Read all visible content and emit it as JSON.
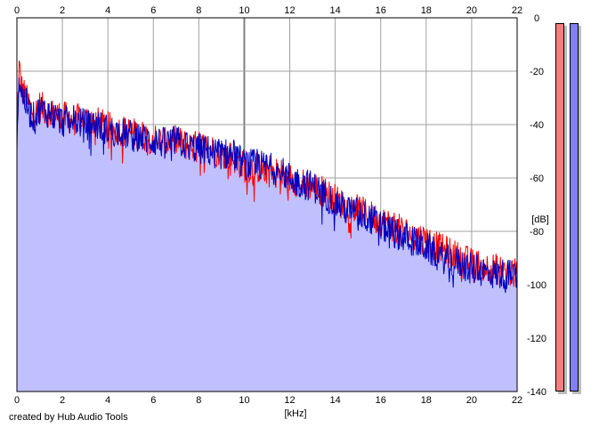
{
  "footer": {
    "credit": "created by Hub Audio Tools"
  },
  "colors": {
    "channel_left": "#ff0000",
    "channel_right": "#0000c0",
    "area_fill": "#c0c0ff",
    "meter_left": "#f08080",
    "meter_right": "#8080f0",
    "grid": "#a0a0a0"
  },
  "meters": {
    "left_level": 1.0,
    "right_level": 1.0
  },
  "chart_data": {
    "type": "line",
    "title": "",
    "xlabel": "[kHz]",
    "ylabel": "[dB]",
    "xlim": [
      0,
      22
    ],
    "ylim": [
      -140,
      0
    ],
    "x_ticks": [
      0,
      2,
      4,
      6,
      8,
      10,
      12,
      14,
      16,
      18,
      20,
      22
    ],
    "y_ticks": [
      0,
      -20,
      -40,
      -60,
      -80,
      -100,
      -120,
      -140
    ],
    "grid": true,
    "series": [
      {
        "channel": "left",
        "x": [
          0,
          0.1,
          0.2,
          0.4,
          0.6,
          0.8,
          1,
          1.5,
          2,
          2.5,
          3,
          3.5,
          4,
          4.5,
          5,
          5.5,
          6,
          6.5,
          7,
          7.5,
          8,
          8.5,
          9,
          9.5,
          10,
          10.5,
          11,
          11.5,
          12,
          12.5,
          13,
          13.5,
          14,
          14.5,
          15,
          15.5,
          16,
          16.5,
          17,
          17.5,
          18,
          18.5,
          19,
          19.5,
          20,
          20.5,
          21,
          21.5,
          22
        ],
        "y": [
          -42,
          -18,
          -26,
          -30,
          -34,
          -36,
          -33,
          -36,
          -37,
          -38,
          -38,
          -39,
          -41,
          -42,
          -43,
          -44,
          -45,
          -47,
          -46,
          -48,
          -48,
          -49,
          -51,
          -52,
          -56,
          -56,
          -57,
          -58,
          -60,
          -62,
          -63,
          -65,
          -68,
          -71,
          -72,
          -74,
          -76,
          -78,
          -80,
          -82,
          -83,
          -86,
          -88,
          -90,
          -92,
          -93,
          -94,
          -95,
          -96
        ]
      },
      {
        "channel": "right",
        "x": [
          0,
          0.1,
          0.2,
          0.4,
          0.6,
          0.8,
          1,
          1.5,
          2,
          2.5,
          3,
          3.5,
          4,
          4.5,
          5,
          5.5,
          6,
          6.5,
          7,
          7.5,
          8,
          8.5,
          9,
          9.5,
          10,
          10.5,
          11,
          11.5,
          12,
          12.5,
          13,
          13.5,
          14,
          14.5,
          15,
          15.5,
          16,
          16.5,
          17,
          17.5,
          18,
          18.5,
          19,
          19.5,
          20,
          20.5,
          21,
          21.5,
          22
        ],
        "y": [
          -44,
          -22,
          -28,
          -32,
          -36,
          -38,
          -34,
          -36,
          -39,
          -38,
          -40,
          -40,
          -42,
          -43,
          -44,
          -45,
          -46,
          -47,
          -46,
          -48,
          -49,
          -50,
          -51,
          -51,
          -55,
          -55,
          -56,
          -57,
          -60,
          -62,
          -63,
          -66,
          -69,
          -72,
          -73,
          -75,
          -78,
          -80,
          -82,
          -84,
          -86,
          -89,
          -91,
          -92,
          -94,
          -95,
          -96,
          -96,
          -97
        ]
      }
    ]
  }
}
